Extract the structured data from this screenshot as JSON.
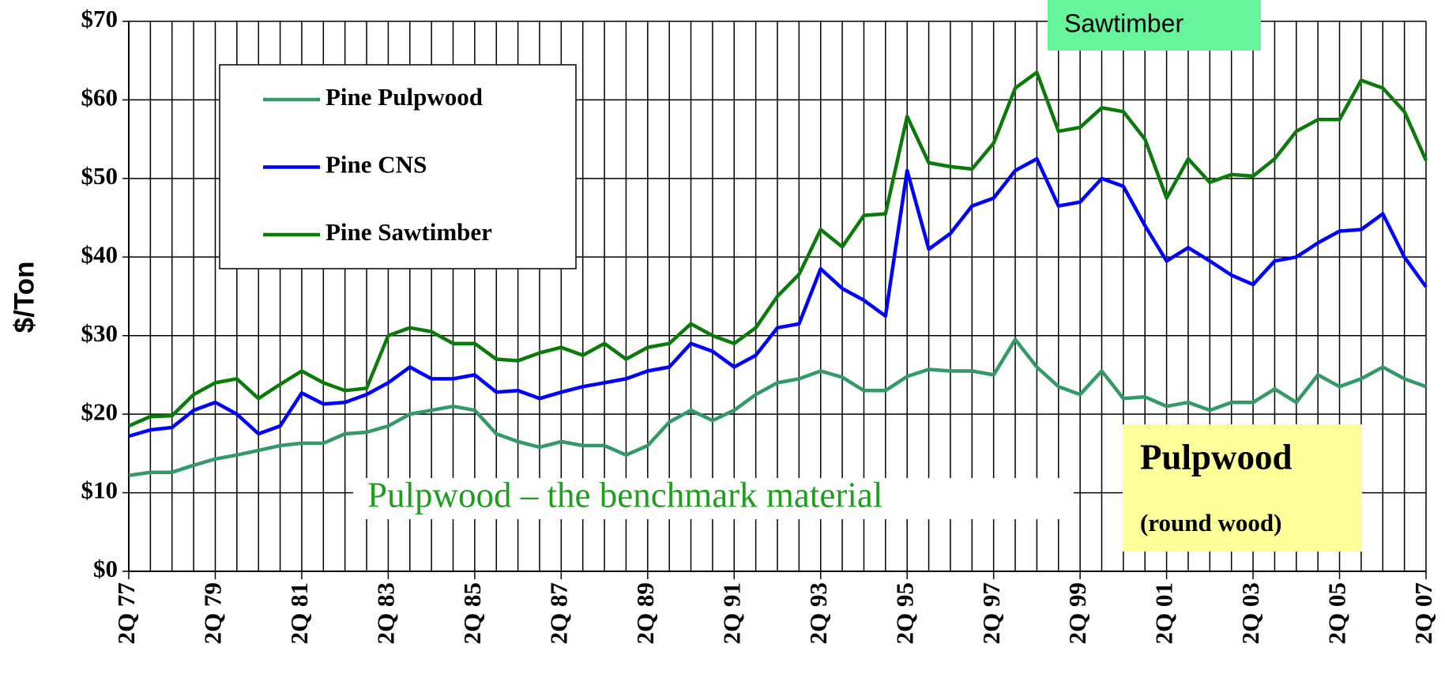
{
  "chart_data": {
    "type": "line",
    "y_label": "$/Ton",
    "categories": [
      "2Q 77",
      null,
      null,
      null,
      "2Q 79",
      null,
      null,
      null,
      "2Q 81",
      null,
      null,
      null,
      "2Q 83",
      null,
      null,
      null,
      "2Q 85",
      null,
      null,
      null,
      "2Q 87",
      null,
      null,
      null,
      "2Q 89",
      null,
      null,
      null,
      "2Q 91",
      null,
      null,
      null,
      "2Q 93",
      null,
      null,
      null,
      "2Q 95",
      null,
      null,
      null,
      "2Q 97",
      null,
      null,
      null,
      "2Q 99",
      null,
      null,
      null,
      "2Q 01",
      null,
      null,
      null,
      "2Q 03",
      null,
      null,
      null,
      "2Q 05",
      null,
      null,
      null,
      "2Q 07"
    ],
    "series": [
      {
        "name": "Pine Pulpwood",
        "color": "#339966",
        "values": [
          12.2,
          12.6,
          12.6,
          13.5,
          14.3,
          14.8,
          15.4,
          16.0,
          16.3,
          16.3,
          17.5,
          17.7,
          18.5,
          20.0,
          20.5,
          21.0,
          20.5,
          17.5,
          16.5,
          15.8,
          16.5,
          16.0,
          16.0,
          14.8,
          16.0,
          19.0,
          20.5,
          19.2,
          20.5,
          22.5,
          24.0,
          24.5,
          25.5,
          24.7,
          23.0,
          23.0,
          24.8,
          25.7,
          25.5,
          25.5,
          25.0,
          29.5,
          26.0,
          23.5,
          22.5,
          25.5,
          22.0,
          22.2,
          21.0,
          21.5,
          20.5,
          21.5,
          21.5,
          23.2,
          21.5,
          25.0,
          23.5,
          24.5,
          26.0,
          24.5,
          23.5
        ]
      },
      {
        "name": "Pine CNS",
        "color": "#0000ff",
        "values": [
          17.2,
          18.0,
          18.3,
          20.5,
          21.5,
          20.0,
          17.5,
          18.5,
          22.7,
          21.3,
          21.5,
          22.5,
          24.0,
          26.0,
          24.5,
          24.5,
          25.0,
          22.8,
          23.0,
          22.0,
          22.8,
          23.5,
          24.0,
          24.5,
          25.5,
          26.0,
          29.0,
          28.0,
          26.0,
          27.5,
          31.0,
          31.5,
          38.5,
          36.0,
          34.5,
          32.5,
          51.0,
          41.0,
          43.0,
          46.5,
          47.5,
          51.0,
          52.5,
          46.5,
          47.0,
          50.0,
          49.0,
          44.0,
          39.5,
          41.2,
          39.5,
          37.7,
          36.5,
          39.5,
          40.0,
          41.8,
          43.3,
          43.5,
          45.5,
          40.0,
          36.2
        ]
      },
      {
        "name": "Pine Sawtimber",
        "color": "#0b7a0b",
        "values": [
          18.5,
          19.7,
          19.8,
          22.5,
          24.0,
          24.5,
          22.0,
          23.8,
          25.5,
          24.0,
          23.0,
          23.3,
          30.0,
          31.0,
          30.5,
          29.0,
          29.0,
          27.0,
          26.8,
          27.8,
          28.5,
          27.5,
          29.0,
          27.0,
          28.5,
          29.0,
          31.5,
          30.0,
          29.0,
          31.0,
          35.0,
          37.8,
          43.5,
          41.3,
          45.3,
          45.5,
          57.9,
          52.0,
          51.5,
          51.2,
          54.5,
          61.5,
          63.5,
          56.0,
          56.5,
          59.0,
          58.5,
          55.0,
          47.5,
          52.5,
          49.5,
          50.5,
          50.3,
          52.5,
          56.0,
          57.5,
          57.5,
          62.5,
          61.5,
          58.5,
          52.3
        ]
      }
    ],
    "ylim": [
      0,
      70
    ],
    "yticks": [
      {
        "value": 0,
        "label": "$0"
      },
      {
        "value": 10,
        "label": "$10"
      },
      {
        "value": 20,
        "label": "$20"
      },
      {
        "value": 30,
        "label": "$30"
      },
      {
        "value": 40,
        "label": "$40"
      },
      {
        "value": 50,
        "label": "$50"
      },
      {
        "value": 60,
        "label": "$60"
      },
      {
        "value": 70,
        "label": "$70"
      }
    ],
    "grid": true,
    "legend": "upper left",
    "annotations": [
      "Sawtimber",
      "Pulpwood",
      "(round wood)",
      "Pulpwood – the benchmark material"
    ]
  }
}
